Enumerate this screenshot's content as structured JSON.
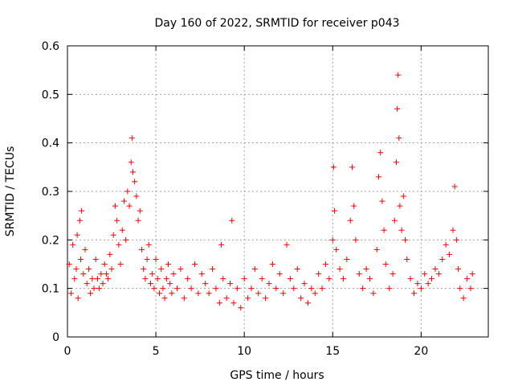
{
  "chart_data": {
    "type": "scatter",
    "title": "Day 160 of 2022, SRMTID for receiver p043",
    "xlabel": "GPS time / hours",
    "ylabel": "SRMTID / TECUs",
    "xlim": [
      0,
      23.8
    ],
    "ylim": [
      0,
      0.6
    ],
    "xticks": [
      0,
      5,
      10,
      15,
      20
    ],
    "xtick_labels": [
      "0",
      "5",
      "10",
      "15",
      "20"
    ],
    "yticks": [
      0,
      0.1,
      0.2,
      0.3,
      0.4,
      0.5,
      0.6
    ],
    "ytick_labels": [
      "0",
      "0.1",
      "0.2",
      "0.3",
      "0.4",
      "0.5",
      "0.6"
    ],
    "grid": true,
    "marker": "+",
    "series": [
      {
        "name": "SRMTID",
        "color": "#ff0000",
        "points": [
          [
            0.1,
            0.15
          ],
          [
            0.2,
            0.09
          ],
          [
            0.3,
            0.19
          ],
          [
            0.4,
            0.12
          ],
          [
            0.5,
            0.14
          ],
          [
            0.55,
            0.21
          ],
          [
            0.6,
            0.08
          ],
          [
            0.7,
            0.24
          ],
          [
            0.75,
            0.16
          ],
          [
            0.8,
            0.26
          ],
          [
            0.9,
            0.13
          ],
          [
            1.0,
            0.18
          ],
          [
            1.1,
            0.11
          ],
          [
            1.2,
            0.14
          ],
          [
            1.3,
            0.09
          ],
          [
            1.4,
            0.12
          ],
          [
            1.5,
            0.1
          ],
          [
            1.6,
            0.16
          ],
          [
            1.7,
            0.12
          ],
          [
            1.8,
            0.1
          ],
          [
            1.9,
            0.13
          ],
          [
            2.0,
            0.11
          ],
          [
            2.1,
            0.15
          ],
          [
            2.2,
            0.13
          ],
          [
            2.3,
            0.12
          ],
          [
            2.4,
            0.17
          ],
          [
            2.5,
            0.14
          ],
          [
            2.6,
            0.21
          ],
          [
            2.7,
            0.27
          ],
          [
            2.8,
            0.24
          ],
          [
            2.9,
            0.19
          ],
          [
            3.0,
            0.15
          ],
          [
            3.1,
            0.22
          ],
          [
            3.2,
            0.28
          ],
          [
            3.3,
            0.2
          ],
          [
            3.4,
            0.3
          ],
          [
            3.5,
            0.27
          ],
          [
            3.6,
            0.36
          ],
          [
            3.65,
            0.41
          ],
          [
            3.7,
            0.34
          ],
          [
            3.8,
            0.32
          ],
          [
            3.9,
            0.29
          ],
          [
            4.0,
            0.24
          ],
          [
            4.1,
            0.26
          ],
          [
            4.2,
            0.18
          ],
          [
            4.3,
            0.14
          ],
          [
            4.4,
            0.12
          ],
          [
            4.5,
            0.16
          ],
          [
            4.6,
            0.19
          ],
          [
            4.7,
            0.11
          ],
          [
            4.8,
            0.13
          ],
          [
            4.9,
            0.1
          ],
          [
            5.0,
            0.16
          ],
          [
            5.1,
            0.12
          ],
          [
            5.2,
            0.09
          ],
          [
            5.3,
            0.14
          ],
          [
            5.4,
            0.1
          ],
          [
            5.5,
            0.08
          ],
          [
            5.6,
            0.12
          ],
          [
            5.7,
            0.15
          ],
          [
            5.8,
            0.11
          ],
          [
            5.9,
            0.09
          ],
          [
            6.0,
            0.13
          ],
          [
            6.2,
            0.1
          ],
          [
            6.4,
            0.14
          ],
          [
            6.6,
            0.08
          ],
          [
            6.8,
            0.12
          ],
          [
            7.0,
            0.1
          ],
          [
            7.2,
            0.15
          ],
          [
            7.4,
            0.09
          ],
          [
            7.6,
            0.13
          ],
          [
            7.8,
            0.11
          ],
          [
            8.0,
            0.09
          ],
          [
            8.2,
            0.14
          ],
          [
            8.4,
            0.1
          ],
          [
            8.6,
            0.07
          ],
          [
            8.7,
            0.19
          ],
          [
            8.8,
            0.12
          ],
          [
            9.0,
            0.08
          ],
          [
            9.2,
            0.11
          ],
          [
            9.3,
            0.24
          ],
          [
            9.4,
            0.07
          ],
          [
            9.6,
            0.1
          ],
          [
            9.8,
            0.06
          ],
          [
            10.0,
            0.12
          ],
          [
            10.2,
            0.08
          ],
          [
            10.4,
            0.1
          ],
          [
            10.6,
            0.14
          ],
          [
            10.8,
            0.09
          ],
          [
            11.0,
            0.12
          ],
          [
            11.2,
            0.08
          ],
          [
            11.4,
            0.11
          ],
          [
            11.6,
            0.15
          ],
          [
            11.8,
            0.1
          ],
          [
            12.0,
            0.13
          ],
          [
            12.2,
            0.09
          ],
          [
            12.4,
            0.19
          ],
          [
            12.6,
            0.12
          ],
          [
            12.8,
            0.1
          ],
          [
            13.0,
            0.14
          ],
          [
            13.2,
            0.08
          ],
          [
            13.4,
            0.11
          ],
          [
            13.6,
            0.07
          ],
          [
            13.8,
            0.1
          ],
          [
            14.0,
            0.09
          ],
          [
            14.2,
            0.13
          ],
          [
            14.4,
            0.1
          ],
          [
            14.6,
            0.15
          ],
          [
            14.8,
            0.12
          ],
          [
            15.0,
            0.2
          ],
          [
            15.05,
            0.35
          ],
          [
            15.1,
            0.26
          ],
          [
            15.2,
            0.18
          ],
          [
            15.4,
            0.14
          ],
          [
            15.6,
            0.12
          ],
          [
            15.8,
            0.16
          ],
          [
            16.0,
            0.24
          ],
          [
            16.1,
            0.35
          ],
          [
            16.2,
            0.27
          ],
          [
            16.3,
            0.2
          ],
          [
            16.5,
            0.13
          ],
          [
            16.7,
            0.1
          ],
          [
            16.9,
            0.14
          ],
          [
            17.1,
            0.12
          ],
          [
            17.3,
            0.09
          ],
          [
            17.5,
            0.18
          ],
          [
            17.6,
            0.33
          ],
          [
            17.7,
            0.38
          ],
          [
            17.8,
            0.28
          ],
          [
            17.9,
            0.22
          ],
          [
            18.0,
            0.15
          ],
          [
            18.2,
            0.1
          ],
          [
            18.4,
            0.13
          ],
          [
            18.5,
            0.24
          ],
          [
            18.6,
            0.36
          ],
          [
            18.65,
            0.47
          ],
          [
            18.7,
            0.54
          ],
          [
            18.75,
            0.41
          ],
          [
            18.8,
            0.27
          ],
          [
            18.9,
            0.22
          ],
          [
            19.0,
            0.29
          ],
          [
            19.1,
            0.2
          ],
          [
            19.2,
            0.16
          ],
          [
            19.4,
            0.12
          ],
          [
            19.6,
            0.09
          ],
          [
            19.8,
            0.11
          ],
          [
            20.0,
            0.1
          ],
          [
            20.2,
            0.13
          ],
          [
            20.4,
            0.11
          ],
          [
            20.6,
            0.12
          ],
          [
            20.8,
            0.14
          ],
          [
            21.0,
            0.13
          ],
          [
            21.2,
            0.16
          ],
          [
            21.4,
            0.19
          ],
          [
            21.6,
            0.17
          ],
          [
            21.8,
            0.22
          ],
          [
            21.9,
            0.31
          ],
          [
            22.0,
            0.2
          ],
          [
            22.1,
            0.14
          ],
          [
            22.2,
            0.1
          ],
          [
            22.4,
            0.08
          ],
          [
            22.6,
            0.12
          ],
          [
            22.8,
            0.1
          ],
          [
            22.9,
            0.13
          ]
        ]
      }
    ]
  }
}
